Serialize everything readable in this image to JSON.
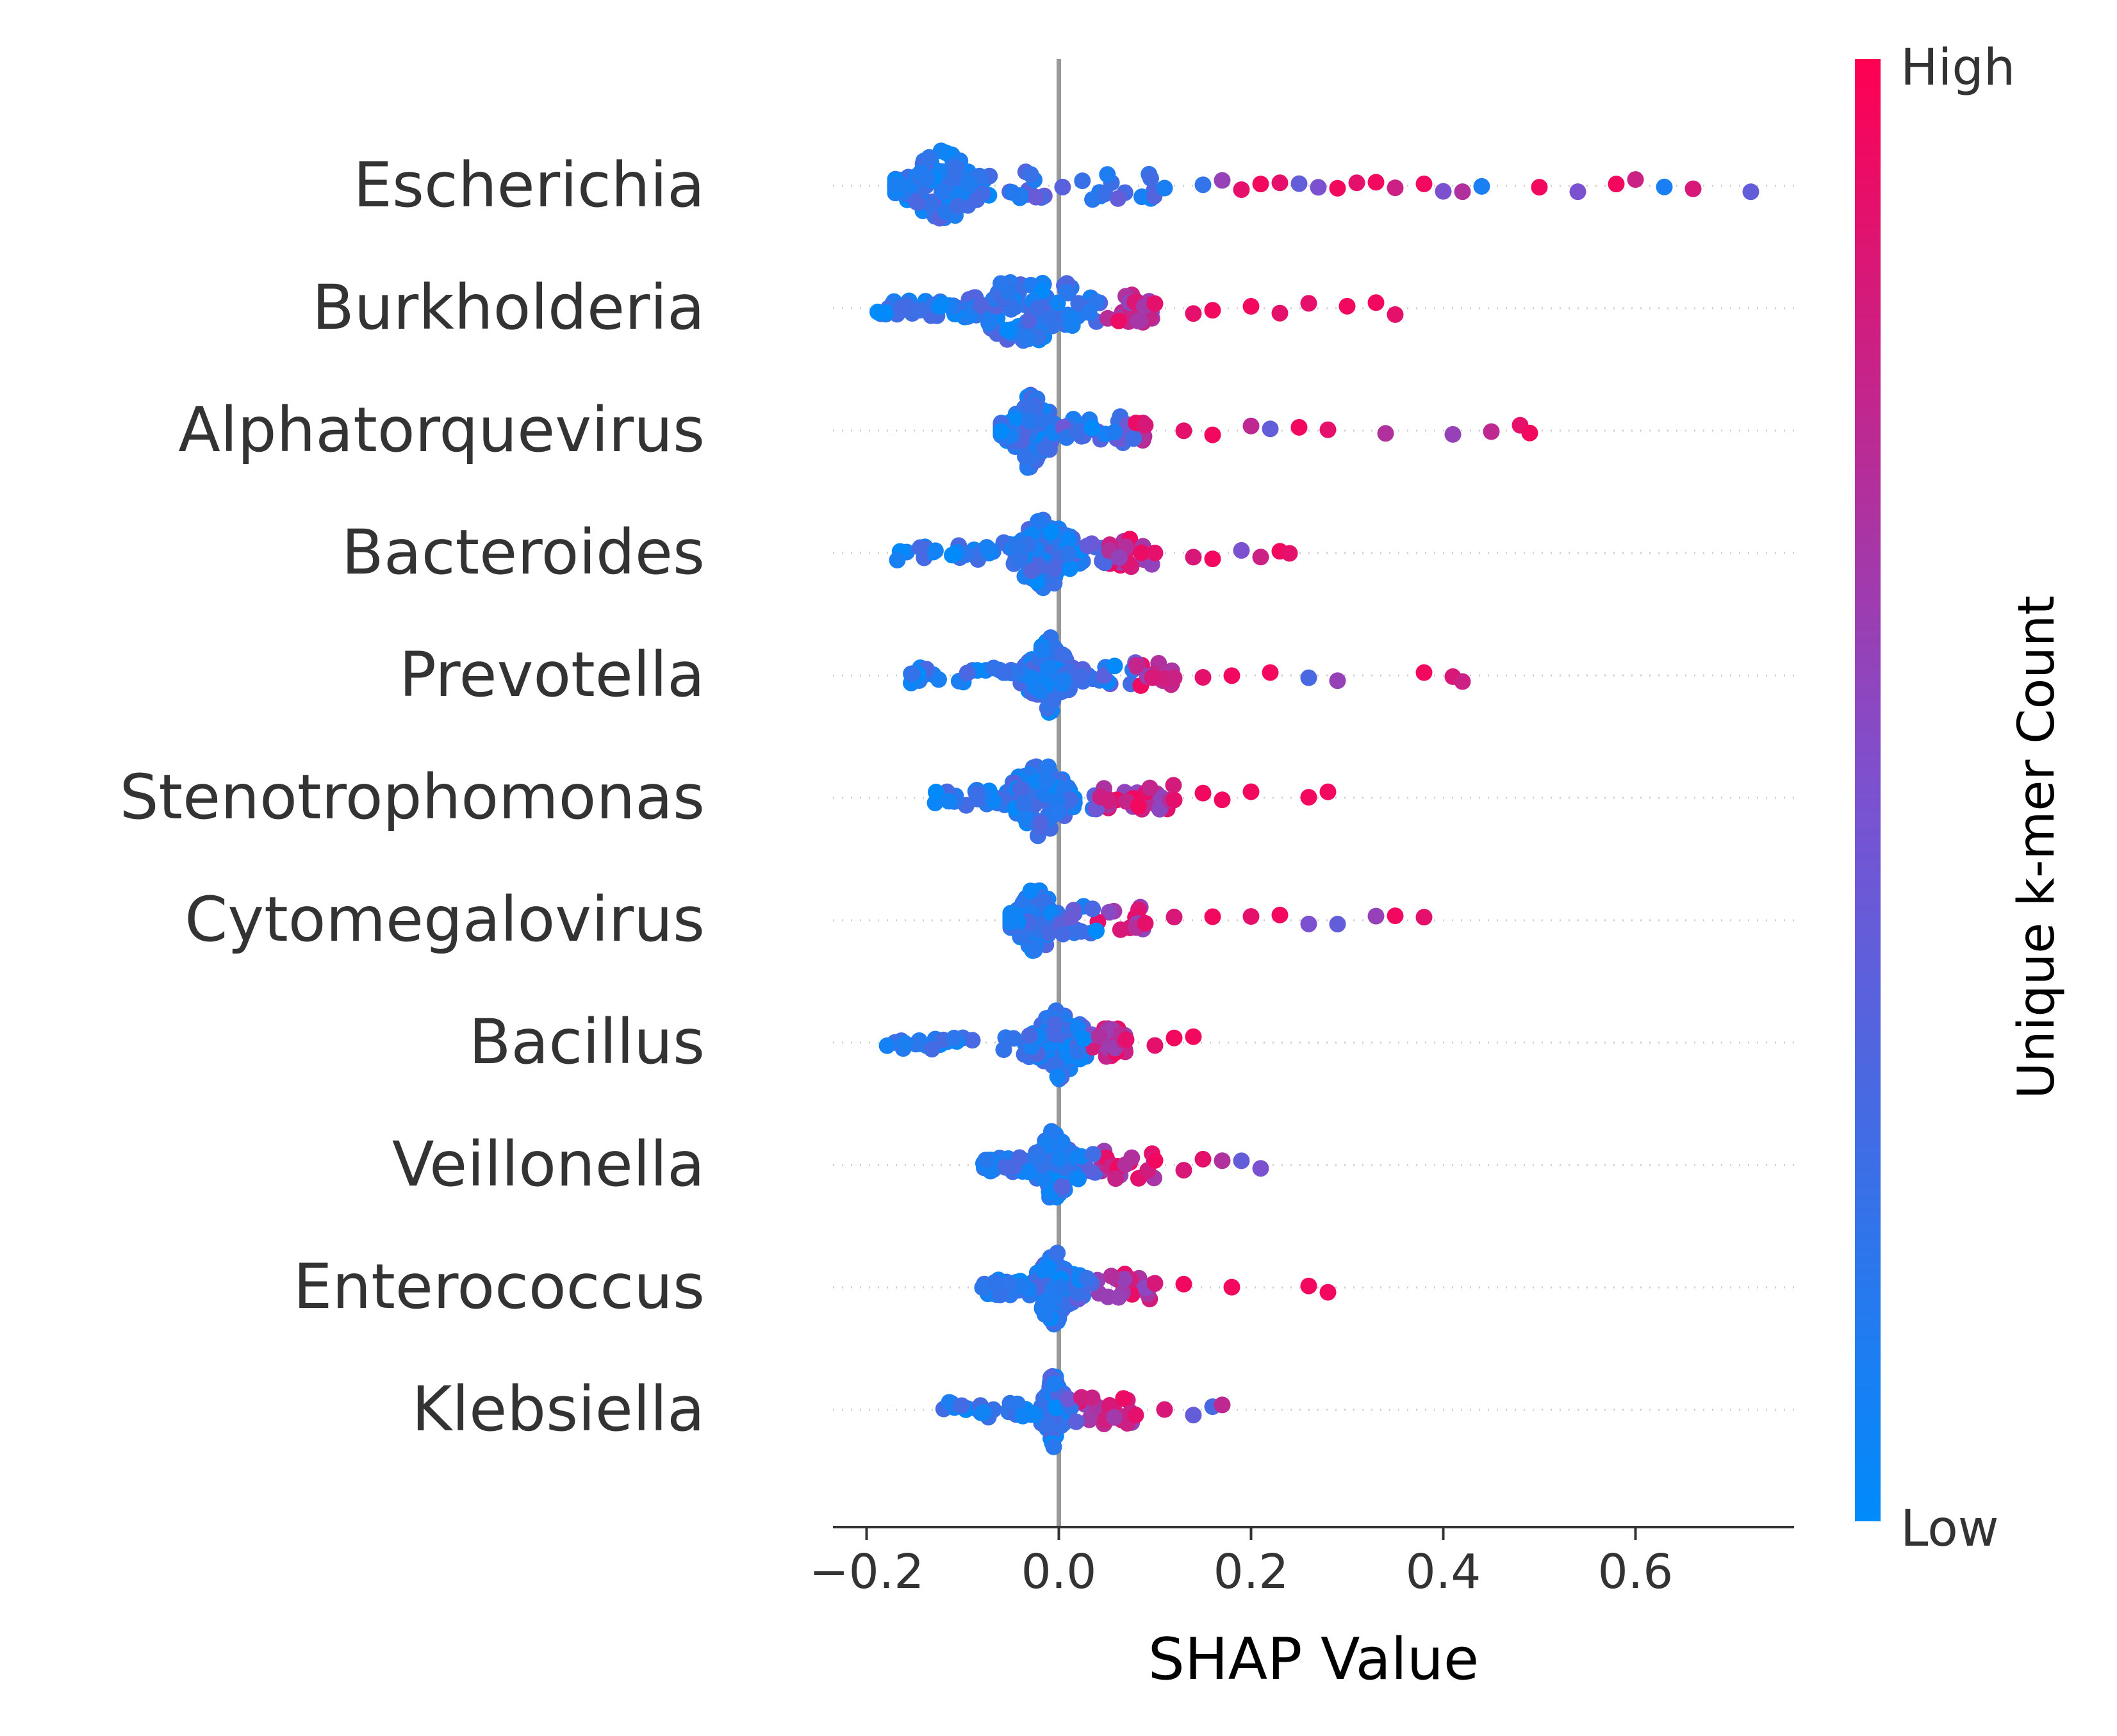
{
  "chart_data": {
    "type": "scatter",
    "subtype": "shap-beeswarm",
    "xlabel": "SHAP Value",
    "xlim": [
      -0.235,
      0.765
    ],
    "x_ticks": [
      -0.2,
      0.0,
      0.2,
      0.4,
      0.6
    ],
    "x_tick_labels": [
      "−0.2",
      "0.0",
      "0.2",
      "0.4",
      "0.6"
    ],
    "zero_line": 0.0,
    "grid": false,
    "colorbar": {
      "label": "Unique k-mer Count",
      "high_label": "High",
      "low_label": "Low",
      "low_color": "#008bfb",
      "mid_color": "#7c51d0",
      "high_color": "#ff0052"
    },
    "features": [
      {
        "name": "Escherichia",
        "range": [
          -0.17,
          0.72
        ],
        "dense_from": -0.17,
        "dense_to": -0.07,
        "high_from": 0.2,
        "tail_points": [
          [
            0.11,
            0.1
          ],
          [
            0.15,
            0.2
          ],
          [
            0.17,
            0.6
          ],
          [
            0.19,
            0.9
          ],
          [
            0.21,
            0.95
          ],
          [
            0.23,
            0.9
          ],
          [
            0.25,
            0.4
          ],
          [
            0.27,
            0.5
          ],
          [
            0.29,
            0.95
          ],
          [
            0.31,
            0.9
          ],
          [
            0.33,
            0.95
          ],
          [
            0.35,
            0.8
          ],
          [
            0.38,
            0.95
          ],
          [
            0.4,
            0.5
          ],
          [
            0.42,
            0.7
          ],
          [
            0.44,
            0.1
          ],
          [
            0.5,
            0.95
          ],
          [
            0.54,
            0.5
          ],
          [
            0.58,
            0.95
          ],
          [
            0.6,
            0.8
          ],
          [
            0.63,
            0.1
          ],
          [
            0.66,
            0.85
          ],
          [
            0.72,
            0.4
          ]
        ]
      },
      {
        "name": "Burkholderia",
        "range": [
          -0.19,
          0.36
        ],
        "dense_from": -0.12,
        "dense_to": 0.06,
        "high_from": 0.05,
        "tail_points": [
          [
            0.1,
            0.9
          ],
          [
            0.14,
            0.9
          ],
          [
            0.16,
            0.95
          ],
          [
            0.2,
            0.95
          ],
          [
            0.23,
            0.9
          ],
          [
            0.26,
            0.9
          ],
          [
            0.3,
            0.95
          ],
          [
            0.33,
            0.95
          ],
          [
            0.35,
            0.9
          ]
        ]
      },
      {
        "name": "Alphatorquevirus",
        "range": [
          -0.06,
          0.49
        ],
        "dense_from": -0.06,
        "dense_to": 0.0,
        "high_from": 0.08,
        "tail_points": [
          [
            0.09,
            0.85
          ],
          [
            0.13,
            0.9
          ],
          [
            0.16,
            0.95
          ],
          [
            0.2,
            0.75
          ],
          [
            0.22,
            0.4
          ],
          [
            0.25,
            0.95
          ],
          [
            0.28,
            0.9
          ],
          [
            0.34,
            0.7
          ],
          [
            0.41,
            0.6
          ],
          [
            0.45,
            0.75
          ],
          [
            0.48,
            0.9
          ],
          [
            0.49,
            0.95
          ]
        ]
      },
      {
        "name": "Bacteroides",
        "range": [
          -0.17,
          0.24
        ],
        "dense_from": -0.06,
        "dense_to": 0.03,
        "high_from": 0.05,
        "tail_points": [
          [
            0.1,
            0.9
          ],
          [
            0.14,
            0.85
          ],
          [
            0.16,
            0.95
          ],
          [
            0.19,
            0.5
          ],
          [
            0.21,
            0.8
          ],
          [
            0.23,
            0.95
          ],
          [
            0.24,
            0.9
          ]
        ]
      },
      {
        "name": "Prevotella",
        "range": [
          -0.16,
          0.42
        ],
        "dense_from": -0.04,
        "dense_to": 0.02,
        "high_from": 0.08,
        "tail_points": [
          [
            0.12,
            0.8
          ],
          [
            0.15,
            0.9
          ],
          [
            0.18,
            0.95
          ],
          [
            0.22,
            0.95
          ],
          [
            0.26,
            0.3
          ],
          [
            0.29,
            0.6
          ],
          [
            0.38,
            0.95
          ],
          [
            0.41,
            0.85
          ],
          [
            0.42,
            0.8
          ]
        ]
      },
      {
        "name": "Stenotrophomonas",
        "range": [
          -0.13,
          0.28
        ],
        "dense_from": -0.06,
        "dense_to": 0.02,
        "high_from": 0.04,
        "tail_points": [
          [
            0.12,
            0.9
          ],
          [
            0.15,
            0.95
          ],
          [
            0.17,
            0.95
          ],
          [
            0.2,
            0.95
          ],
          [
            0.26,
            0.95
          ],
          [
            0.28,
            0.95
          ]
        ]
      },
      {
        "name": "Cytomegalovirus",
        "range": [
          -0.05,
          0.38
        ],
        "dense_from": -0.05,
        "dense_to": 0.0,
        "high_from": 0.04,
        "tail_points": [
          [
            0.09,
            0.9
          ],
          [
            0.12,
            0.85
          ],
          [
            0.16,
            0.95
          ],
          [
            0.2,
            0.9
          ],
          [
            0.23,
            0.95
          ],
          [
            0.26,
            0.5
          ],
          [
            0.29,
            0.4
          ],
          [
            0.33,
            0.6
          ],
          [
            0.35,
            0.95
          ],
          [
            0.38,
            0.9
          ]
        ]
      },
      {
        "name": "Bacillus",
        "range": [
          -0.18,
          0.14
        ],
        "dense_from": -0.04,
        "dense_to": 0.04,
        "high_from": 0.03,
        "tail_points": [
          [
            0.07,
            0.9
          ],
          [
            0.1,
            0.9
          ],
          [
            0.12,
            0.95
          ],
          [
            0.14,
            0.95
          ]
        ]
      },
      {
        "name": "Veillonella",
        "range": [
          -0.08,
          0.21
        ],
        "dense_from": -0.03,
        "dense_to": 0.02,
        "high_from": 0.04,
        "tail_points": [
          [
            0.1,
            0.95
          ],
          [
            0.13,
            0.85
          ],
          [
            0.15,
            0.9
          ],
          [
            0.17,
            0.7
          ],
          [
            0.19,
            0.4
          ],
          [
            0.21,
            0.5
          ]
        ]
      },
      {
        "name": "Enterococcus",
        "range": [
          -0.08,
          0.29
        ],
        "dense_from": -0.03,
        "dense_to": 0.02,
        "high_from": 0.04,
        "tail_points": [
          [
            0.1,
            0.85
          ],
          [
            0.13,
            0.95
          ],
          [
            0.18,
            0.95
          ],
          [
            0.26,
            0.95
          ],
          [
            0.28,
            0.95
          ]
        ]
      },
      {
        "name": "Klebsiella",
        "range": [
          -0.12,
          0.17
        ],
        "dense_from": -0.02,
        "dense_to": 0.01,
        "high_from": 0.02,
        "tail_points": [
          [
            0.08,
            0.9
          ],
          [
            0.11,
            0.85
          ],
          [
            0.14,
            0.4
          ],
          [
            0.16,
            0.3
          ],
          [
            0.17,
            0.75
          ]
        ]
      }
    ]
  }
}
